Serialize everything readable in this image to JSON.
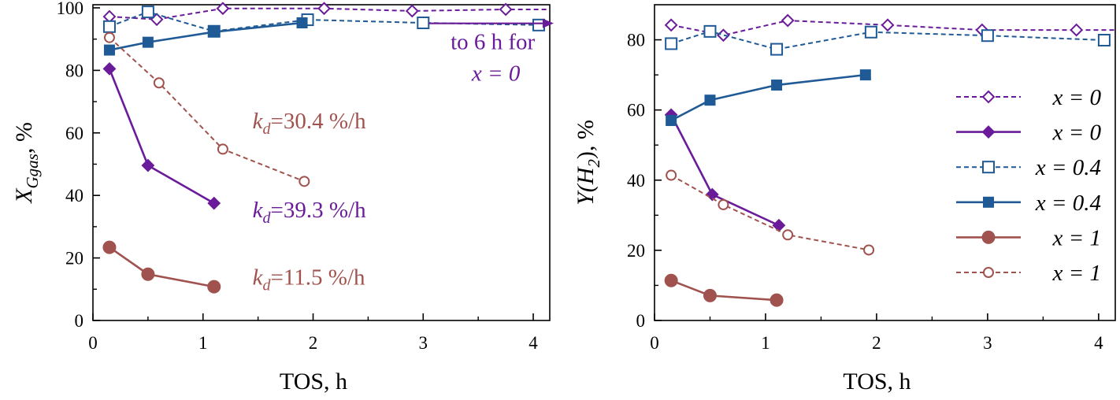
{
  "colors": {
    "purple": "#6a1b9a",
    "blue": "#1f5a96",
    "brown": "#a0524e"
  },
  "chart_data": [
    {
      "type": "line",
      "xlabel": "TOS, h",
      "ylabel_main": "X",
      "ylabel_sub": "Ggas",
      "ylabel_tail": ", %",
      "xlim": [
        0,
        4.15
      ],
      "ylim": [
        0,
        101
      ],
      "xticks": [
        "0",
        "1",
        "2",
        "3",
        "4"
      ],
      "yticks": [
        "0",
        "20",
        "40",
        "60",
        "80",
        "100"
      ],
      "series": [
        {
          "key": "p_open",
          "name": "x = 0",
          "color": "purple",
          "marker": "diamond-open",
          "dashed": true,
          "x": [
            0.15,
            0.58,
            1.18,
            2.1,
            2.9,
            3.75,
            4.15
          ],
          "y": [
            97.2,
            96.3,
            99.8,
            99.8,
            99.0,
            99.5,
            99.5
          ]
        },
        {
          "key": "p_filled",
          "name": "x = 0",
          "color": "purple",
          "marker": "diamond-filled",
          "dashed": false,
          "x": [
            0.15,
            0.5,
            1.1
          ],
          "y": [
            80.5,
            49.6,
            37.5
          ]
        },
        {
          "key": "b_open",
          "name": "x = 0.4",
          "color": "blue",
          "marker": "square-open",
          "dashed": true,
          "x": [
            0.15,
            0.5,
            1.1,
            1.95,
            3.0,
            4.05
          ],
          "y": [
            94.0,
            98.7,
            92.5,
            96.2,
            95.2,
            94.5
          ]
        },
        {
          "key": "b_filled",
          "name": "x = 0.4",
          "color": "blue",
          "marker": "square-filled",
          "dashed": false,
          "x": [
            0.15,
            0.5,
            1.1,
            1.9
          ],
          "y": [
            86.5,
            89.0,
            92.3,
            95.2
          ]
        },
        {
          "key": "r_filled",
          "name": "x = 1",
          "color": "brown",
          "marker": "circle-filled",
          "dashed": false,
          "x": [
            0.15,
            0.5,
            1.1
          ],
          "y": [
            23.4,
            14.8,
            10.8
          ]
        },
        {
          "key": "r_open",
          "name": "x = 1",
          "color": "brown",
          "marker": "circle-open",
          "dashed": true,
          "x": [
            0.15,
            0.6,
            1.18,
            1.92
          ],
          "y": [
            90.5,
            76.0,
            54.8,
            44.5
          ]
        }
      ],
      "annotations": [
        {
          "label": "k",
          "sub": "d",
          "tail": "=30.4 %/h",
          "color": "brown",
          "x": 1.45,
          "y": 61.5
        },
        {
          "label": "k",
          "sub": "d",
          "tail": "=39.3 %/h",
          "color": "purple",
          "x": 1.45,
          "y": 33.0
        },
        {
          "label": "k",
          "sub": "d",
          "tail": "=11.5 %/h",
          "color": "brown",
          "x": 1.45,
          "y": 11.5
        }
      ],
      "arrow_note": {
        "line1": "to 6 h for",
        "line2": "x = 0",
        "color": "purple",
        "x_from": 3.05,
        "x_to": 4.2,
        "y": 90
      }
    },
    {
      "type": "line",
      "xlabel": "TOS, h",
      "ylabel_main": "Y(H",
      "ylabel_sub": "2",
      "ylabel_tail": "), %",
      "xlim": [
        0,
        4.15
      ],
      "ylim": [
        0,
        90
      ],
      "xticks": [
        "0",
        "1",
        "2",
        "3",
        "4"
      ],
      "yticks": [
        "0",
        "20",
        "40",
        "60",
        "80"
      ],
      "series": [
        {
          "key": "p_open",
          "name": "x = 0",
          "color": "purple",
          "marker": "diamond-open",
          "dashed": true,
          "x": [
            0.15,
            0.62,
            1.2,
            2.1,
            2.95,
            3.8,
            4.15
          ],
          "y": [
            84.2,
            81.3,
            85.5,
            84.2,
            82.8,
            82.8,
            82.8
          ]
        },
        {
          "key": "p_filled",
          "name": "x = 0",
          "color": "purple",
          "marker": "diamond-filled",
          "dashed": false,
          "x": [
            0.15,
            0.52,
            1.12
          ],
          "y": [
            58.6,
            35.9,
            27.1
          ]
        },
        {
          "key": "b_open",
          "name": "x = 0.4",
          "color": "blue",
          "marker": "square-open",
          "dashed": true,
          "x": [
            0.15,
            0.5,
            1.1,
            1.95,
            3.0,
            4.05
          ],
          "y": [
            78.9,
            82.4,
            77.3,
            82.2,
            81.2,
            79.9
          ]
        },
        {
          "key": "b_filled",
          "name": "x = 0.4",
          "color": "blue",
          "marker": "square-filled",
          "dashed": false,
          "x": [
            0.15,
            0.5,
            1.1,
            1.9
          ],
          "y": [
            57.0,
            62.8,
            67.1,
            70.0
          ]
        },
        {
          "key": "r_filled",
          "name": "x = 1",
          "color": "brown",
          "marker": "circle-filled",
          "dashed": false,
          "x": [
            0.15,
            0.5,
            1.1
          ],
          "y": [
            11.4,
            7.1,
            5.8
          ]
        },
        {
          "key": "r_open",
          "name": "x = 1",
          "color": "brown",
          "marker": "circle-open",
          "dashed": true,
          "x": [
            0.15,
            0.62,
            1.2,
            1.93
          ],
          "y": [
            41.4,
            33.0,
            24.4,
            20.1
          ]
        }
      ],
      "legend": {
        "placement": "right",
        "entries": [
          {
            "series": "p_open",
            "label": "x = 0"
          },
          {
            "series": "p_filled",
            "label": "x = 0"
          },
          {
            "series": "b_open",
            "label": "x = 0.4"
          },
          {
            "series": "b_filled",
            "label": "x = 0.4"
          },
          {
            "series": "r_filled",
            "label": "x = 1"
          },
          {
            "series": "r_open",
            "label": "x = 1"
          }
        ]
      }
    }
  ]
}
